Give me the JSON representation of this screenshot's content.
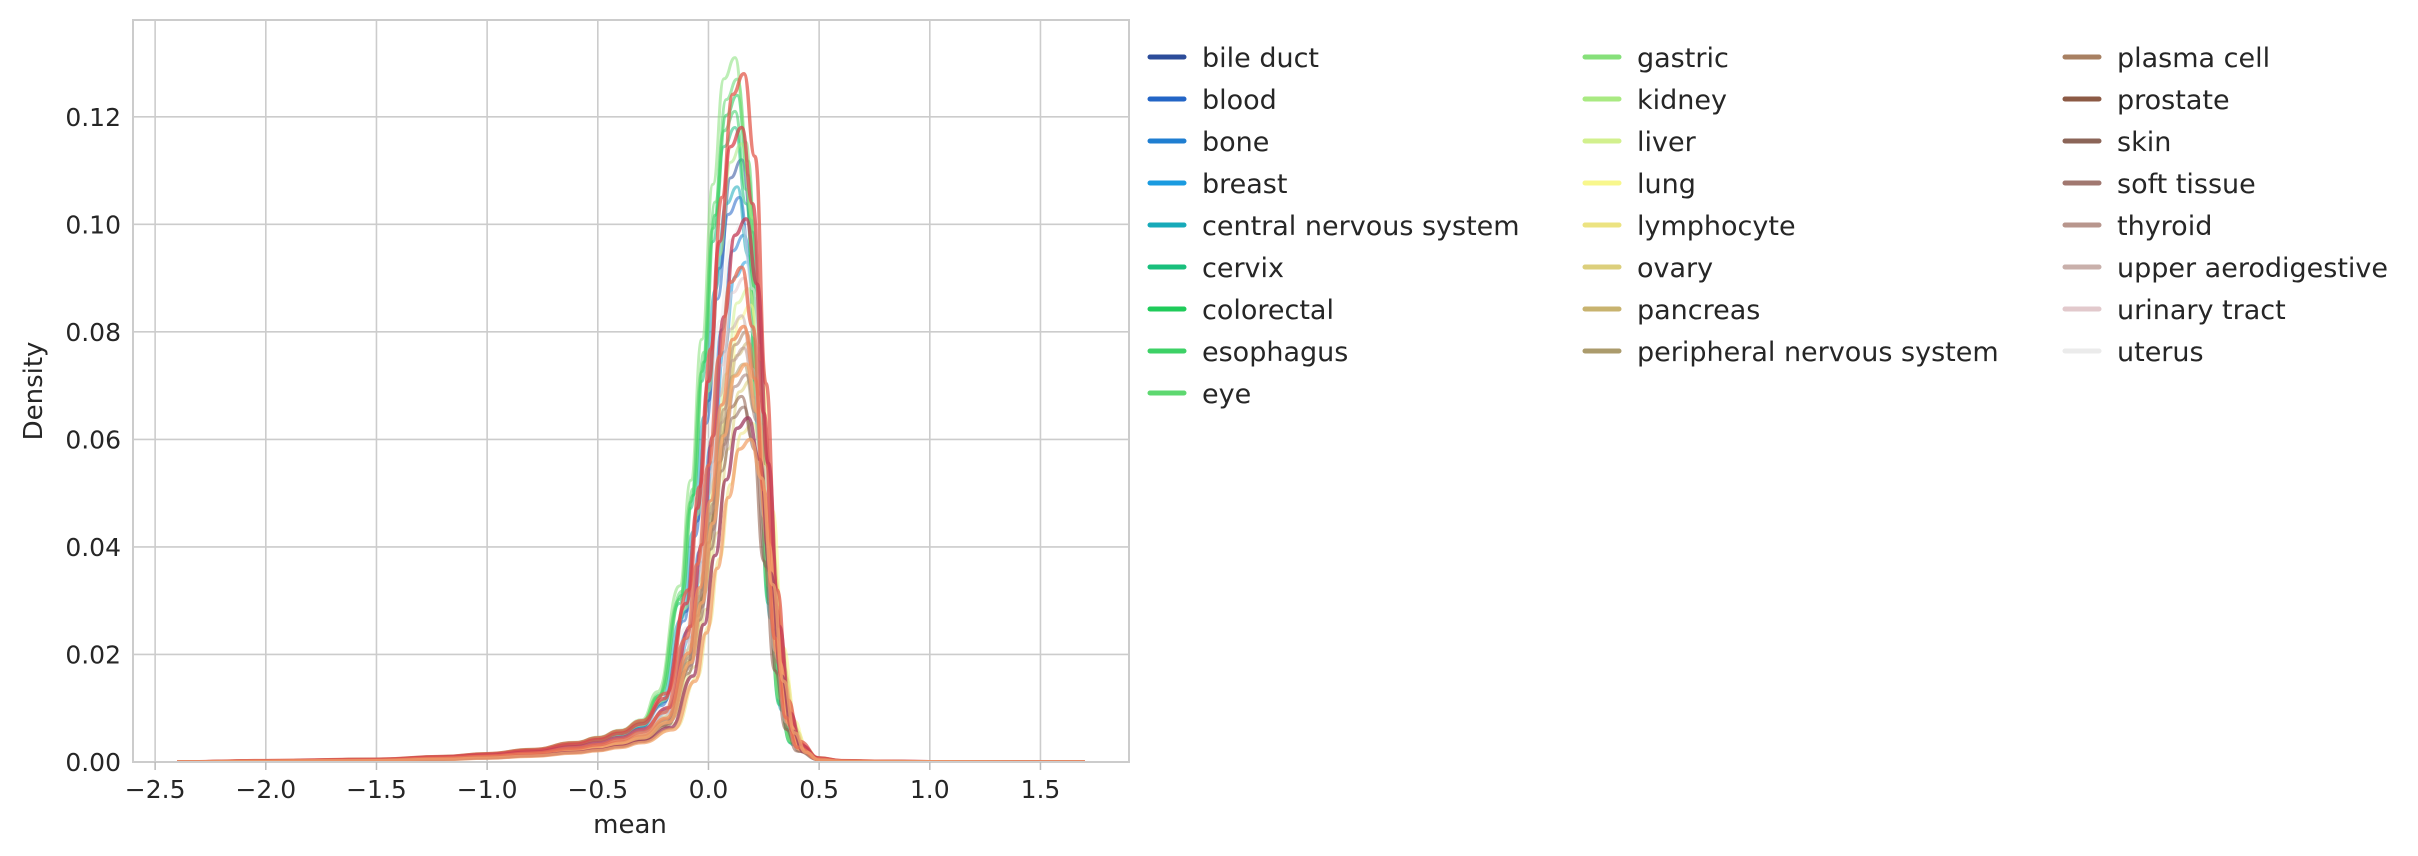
{
  "chart_data": {
    "type": "line",
    "xlabel": "mean",
    "ylabel": "Density",
    "xlim": [
      -2.6,
      1.9
    ],
    "ylim": [
      0,
      0.138
    ],
    "x_ticks": [
      "−2.5",
      "−2.0",
      "−1.5",
      "−1.0",
      "−0.5",
      "0.0",
      "0.5",
      "1.0",
      "1.5"
    ],
    "x_tick_values": [
      -2.5,
      -2.0,
      -1.5,
      -1.0,
      -0.5,
      0.0,
      0.5,
      1.0,
      1.5
    ],
    "y_ticks": [
      "0.00",
      "0.02",
      "0.04",
      "0.06",
      "0.08",
      "0.10",
      "0.12"
    ],
    "y_tick_values": [
      0.0,
      0.02,
      0.04,
      0.06,
      0.08,
      0.1,
      0.12
    ],
    "grid": true,
    "legend_placement": "outside right, three columns",
    "curve_x": [
      -2.4,
      -2.0,
      -1.5,
      -1.2,
      -1.0,
      -0.8,
      -0.6,
      -0.5,
      -0.4,
      -0.3,
      -0.2,
      -0.1,
      -0.05,
      0.0,
      0.05,
      0.1,
      0.15,
      0.2,
      0.25,
      0.3,
      0.35,
      0.4,
      0.5,
      0.6,
      0.8,
      1.0,
      1.5,
      1.7
    ],
    "series": [
      {
        "name": "bile duct",
        "color": "#2c4c9a",
        "peak": 0.112,
        "peak_x": 0.15
      },
      {
        "name": "blood",
        "color": "#2365c6",
        "peak": 0.105,
        "peak_x": 0.14
      },
      {
        "name": "bone",
        "color": "#1f7ed1",
        "peak": 0.098,
        "peak_x": 0.16
      },
      {
        "name": "breast",
        "color": "#1a9be0",
        "peak": 0.093,
        "peak_x": 0.17
      },
      {
        "name": "central nervous system",
        "color": "#17aab9",
        "peak": 0.107,
        "peak_x": 0.13
      },
      {
        "name": "cervix",
        "color": "#19bf7c",
        "peak": 0.118,
        "peak_x": 0.12
      },
      {
        "name": "colorectal",
        "color": "#1fcb5a",
        "peak": 0.124,
        "peak_x": 0.13
      },
      {
        "name": "esophagus",
        "color": "#3dd166",
        "peak": 0.121,
        "peak_x": 0.12
      },
      {
        "name": "eye",
        "color": "#5ed870",
        "peak": 0.127,
        "peak_x": 0.13
      },
      {
        "name": "gastric",
        "color": "#86e07a",
        "peak": 0.131,
        "peak_x": 0.12
      },
      {
        "name": "kidney",
        "color": "#a9ea82",
        "peak": 0.115,
        "peak_x": 0.15
      },
      {
        "name": "liver",
        "color": "#d2f08e",
        "peak": 0.088,
        "peak_x": 0.18
      },
      {
        "name": "lung",
        "color": "#f8f78c",
        "peak": 0.085,
        "peak_x": 0.19
      },
      {
        "name": "lymphocyte",
        "color": "#ece381",
        "peak": 0.063,
        "peak_x": 0.2
      },
      {
        "name": "ovary",
        "color": "#dccf7c",
        "peak": 0.071,
        "peak_x": 0.19
      },
      {
        "name": "pancreas",
        "color": "#c8b36f",
        "peak": 0.078,
        "peak_x": 0.18
      },
      {
        "name": "peripheral nervous system",
        "color": "#ab9b6c",
        "peak": 0.074,
        "peak_x": 0.16
      },
      {
        "name": "plasma cell",
        "color": "#a88062",
        "peak": 0.08,
        "peak_x": 0.17
      },
      {
        "name": "prostate",
        "color": "#8c5a45",
        "peak": 0.068,
        "peak_x": 0.15
      },
      {
        "name": "skin",
        "color": "#8b6558",
        "peak": 0.066,
        "peak_x": 0.16
      },
      {
        "name": "soft tissue",
        "color": "#a17870",
        "peak": 0.072,
        "peak_x": 0.17
      },
      {
        "name": "thyroid",
        "color": "#b8968d",
        "peak": 0.077,
        "peak_x": 0.16
      },
      {
        "name": "upper aerodigestive",
        "color": "#c9b0ab",
        "peak": 0.083,
        "peak_x": 0.15
      },
      {
        "name": "urinary tract",
        "color": "#e2c9cc",
        "peak": 0.09,
        "peak_x": 0.16
      },
      {
        "name": "uterus",
        "color": "#ebebeb",
        "peak": 0.1,
        "peak_x": 0.15
      }
    ],
    "overlay_series": [
      {
        "color": "#e35a4c",
        "peak": 0.128,
        "peak_x": 0.16
      },
      {
        "color": "#d9434d",
        "peak": 0.118,
        "peak_x": 0.15
      },
      {
        "color": "#c43a55",
        "peak": 0.101,
        "peak_x": 0.17
      },
      {
        "color": "#f08a5a",
        "peak": 0.081,
        "peak_x": 0.16
      },
      {
        "color": "#f6a66b",
        "peak": 0.074,
        "peak_x": 0.17
      },
      {
        "color": "#9e3a5e",
        "peak": 0.064,
        "peak_x": 0.18
      },
      {
        "color": "#e76b52",
        "peak": 0.092,
        "peak_x": 0.15
      },
      {
        "color": "#f2a46e",
        "peak": 0.06,
        "peak_x": 0.19
      }
    ]
  }
}
